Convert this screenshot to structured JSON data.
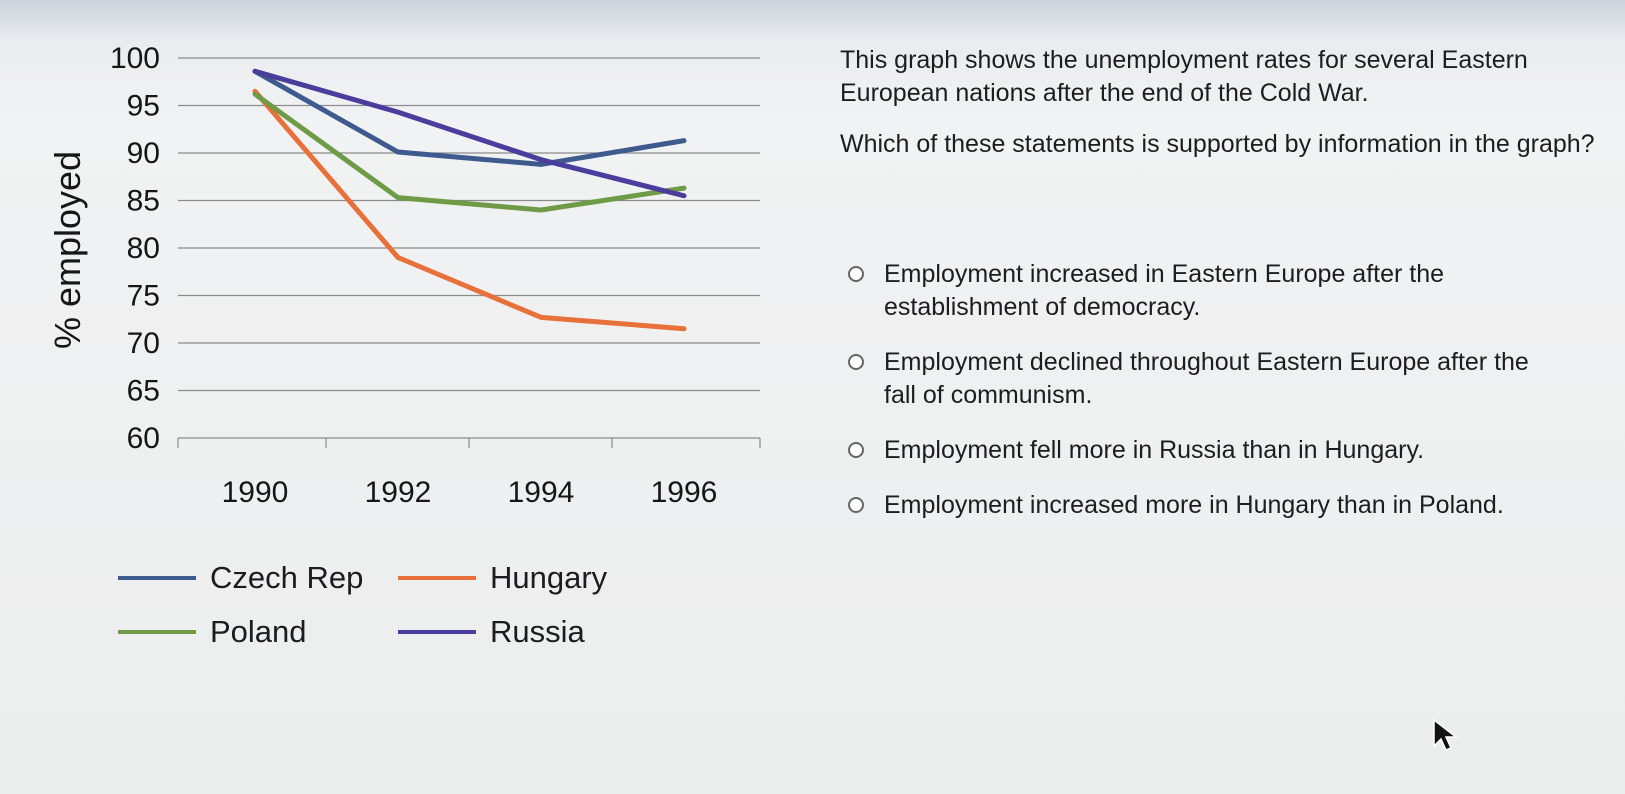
{
  "chart_data": {
    "type": "line",
    "ylabel": "% employed",
    "xlabel": "",
    "title": "",
    "x": [
      "1990",
      "1992",
      "1994",
      "1996"
    ],
    "ylim": [
      60,
      100
    ],
    "yticks": [
      100,
      95,
      90,
      85,
      80,
      75,
      70,
      65,
      60
    ],
    "grid": "horizontal",
    "legend_position": "bottom",
    "series": [
      {
        "name": "Czech Rep",
        "color": "#3f5a8e",
        "values": [
          98.6,
          90.1,
          88.8,
          91.3
        ]
      },
      {
        "name": "Hungary",
        "color": "#e8703a",
        "values": [
          96.5,
          79.0,
          72.7,
          71.5
        ]
      },
      {
        "name": "Poland",
        "color": "#6f9a46",
        "values": [
          96.2,
          85.3,
          84.0,
          86.3
        ]
      },
      {
        "name": "Russia",
        "color": "#4a3d9c",
        "values": [
          98.6,
          94.3,
          89.3,
          85.5
        ]
      }
    ]
  },
  "question": {
    "intro": "This graph shows the unemployment rates for several Eastern European nations after the end of the Cold War.",
    "prompt": "Which of these statements is supported by information in the graph?"
  },
  "options": [
    {
      "label": "Employment increased in Eastern Europe after the establishment of democracy."
    },
    {
      "label": "Employment declined throughout Eastern Europe after the fall of communism."
    },
    {
      "label": "Employment fell more in Russia than in Hungary."
    },
    {
      "label": "Employment increased more in Hungary than in Poland."
    }
  ],
  "icons": {
    "cursor": "mouse-pointer-icon",
    "radio": "radio-unselected-icon"
  }
}
